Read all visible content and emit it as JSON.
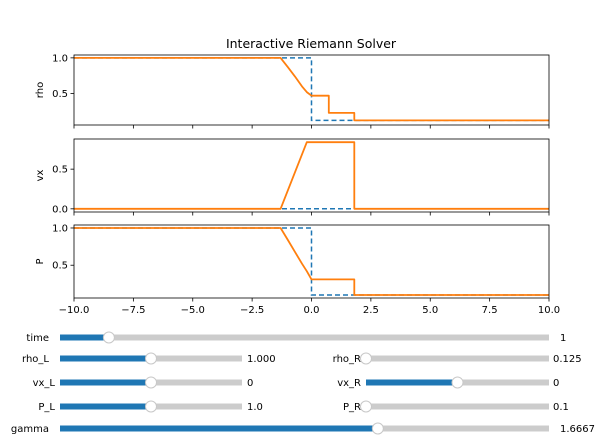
{
  "window": {
    "title": "Interactive Riemann Solver"
  },
  "colors": {
    "initial": "#1f77b4",
    "solution": "#ff7f0e",
    "slider_track": "#cccccc",
    "slider_fill": "#1f77b4",
    "slider_knob": "#ffffff"
  },
  "chart_data": {
    "type": "line",
    "title": "Interactive Riemann Solver",
    "xlim": [
      -10.0,
      10.0
    ],
    "xticks": [
      "−10.0",
      "−7.5",
      "−5.0",
      "−2.5",
      "0.0",
      "2.5",
      "5.0",
      "7.5",
      "10.0"
    ],
    "xtick_values": [
      -10.0,
      -7.5,
      -5.0,
      -2.5,
      0.0,
      2.5,
      5.0,
      7.5,
      10.0
    ],
    "panels": [
      {
        "ylabel": "rho",
        "ylim": [
          0.06,
          1.04
        ],
        "yticks": [
          "0.5",
          "1.0"
        ],
        "ytick_values": [
          0.5,
          1.0
        ],
        "initial": {
          "x": [
            -10,
            0,
            0,
            10
          ],
          "y": [
            1.0,
            1.0,
            0.125,
            0.125
          ]
        },
        "solution": {
          "x": [
            -10,
            -1.3,
            -1.0,
            -0.7,
            -0.4,
            -0.2,
            0.0,
            0.0,
            0.73,
            0.73,
            1.8,
            1.8,
            10
          ],
          "y": [
            1.0,
            1.0,
            0.87,
            0.74,
            0.6,
            0.52,
            0.47,
            0.47,
            0.47,
            0.23,
            0.23,
            0.125,
            0.125
          ]
        }
      },
      {
        "ylabel": "vx",
        "ylim": [
          -0.04,
          0.88
        ],
        "yticks": [
          "0.0",
          "0.5"
        ],
        "ytick_values": [
          0.0,
          0.5
        ],
        "initial": {
          "x": [
            -10,
            10
          ],
          "y": [
            0.0,
            0.0
          ]
        },
        "solution": {
          "x": [
            -10,
            -1.3,
            -0.2,
            1.8,
            1.8,
            10
          ],
          "y": [
            0.0,
            0.0,
            0.84,
            0.84,
            0.0,
            0.0
          ]
        }
      },
      {
        "ylabel": "P",
        "ylim": [
          0.06,
          1.04
        ],
        "yticks": [
          "0.5",
          "1.0"
        ],
        "ytick_values": [
          0.5,
          1.0
        ],
        "initial": {
          "x": [
            -10,
            0,
            0,
            10
          ],
          "y": [
            1.0,
            1.0,
            0.1,
            0.1
          ]
        },
        "solution": {
          "x": [
            -10,
            -1.3,
            -1.0,
            -0.7,
            -0.4,
            -0.2,
            0.0,
            0.0,
            1.8,
            1.8,
            10
          ],
          "y": [
            1.0,
            1.0,
            0.84,
            0.68,
            0.52,
            0.42,
            0.31,
            0.31,
            0.31,
            0.1,
            0.1
          ]
        }
      }
    ]
  },
  "sliders": [
    {
      "name": "time",
      "label": "time",
      "value_text": "1",
      "fraction": 0.1
    },
    {
      "name": "rho-l",
      "label": "rho_L",
      "value_text": "1.000",
      "fraction": 0.5
    },
    {
      "name": "rho-r",
      "label": "rho_R",
      "value_text": "0.125",
      "fraction": 0.0
    },
    {
      "name": "vx-l",
      "label": "vx_L",
      "value_text": "0",
      "fraction": 0.5
    },
    {
      "name": "vx-r",
      "label": "vx_R",
      "value_text": "0",
      "fraction": 0.5
    },
    {
      "name": "p-l",
      "label": "P_L",
      "value_text": "1.0",
      "fraction": 0.5
    },
    {
      "name": "p-r",
      "label": "P_R",
      "value_text": "0.1",
      "fraction": 0.0
    },
    {
      "name": "gamma",
      "label": "gamma",
      "value_text": "1.6667",
      "fraction": 0.65
    }
  ]
}
